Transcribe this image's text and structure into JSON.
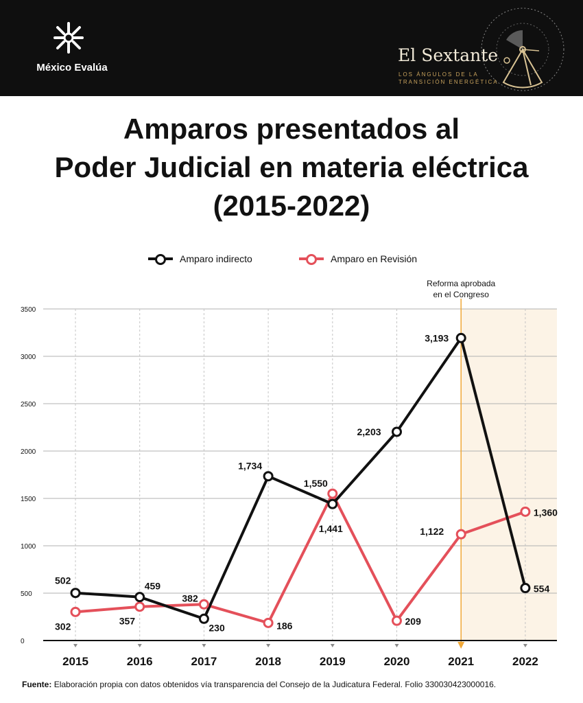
{
  "header": {
    "org_name": "México Evalúa",
    "brand_title": "El Sextante",
    "brand_subtitle_1": "LOS ÁNGULOS DE LA",
    "brand_subtitle_2": "TRANSICIÓN ENERGÉTICA"
  },
  "title_lines": [
    "Amparos presentados al",
    "Poder Judicial en materia eléctrica",
    "(2015-2022)"
  ],
  "legend": [
    {
      "label": "Amparo indirecto",
      "color": "#111111"
    },
    {
      "label": "Amparo en Revisión",
      "color": "#e4505a"
    }
  ],
  "annotation_lines": [
    "Reforma aprobada",
    "en el Congreso"
  ],
  "source": {
    "label": "Fuente:",
    "text": "Elaboración propia con datos obtenidos vía transparencia del Consejo de la Judicatura Federal. Folio 330030423000016."
  },
  "chart_data": {
    "type": "line",
    "categories": [
      "2015",
      "2016",
      "2017",
      "2018",
      "2019",
      "2020",
      "2021",
      "2022"
    ],
    "series": [
      {
        "name": "Amparo indirecto",
        "values": [
          502,
          459,
          230,
          1734,
          1441,
          2203,
          3193,
          554
        ],
        "labels": [
          "502",
          "459",
          "230",
          "1,734",
          "1,441",
          "2,203",
          "3,193",
          "554"
        ],
        "color": "#111111"
      },
      {
        "name": "Amparo en Revisión",
        "values": [
          302,
          357,
          382,
          186,
          1550,
          209,
          1122,
          1360
        ],
        "labels": [
          "302",
          "357",
          "382",
          "186",
          "1,550",
          "209",
          "1,122",
          "1,360"
        ],
        "color": "#e4505a"
      }
    ],
    "ylim": [
      0,
      3500
    ],
    "yticks": [
      0,
      500,
      1000,
      1500,
      2000,
      2500,
      3000,
      3500
    ],
    "ytick_labels": [
      "0",
      "500",
      "1000",
      "1500",
      "2000",
      "2500",
      "3000",
      "3500"
    ],
    "grid": true,
    "highlight_from": "2021",
    "highlight_color": "#fcf3e6",
    "marker_color": "#f0a838"
  }
}
